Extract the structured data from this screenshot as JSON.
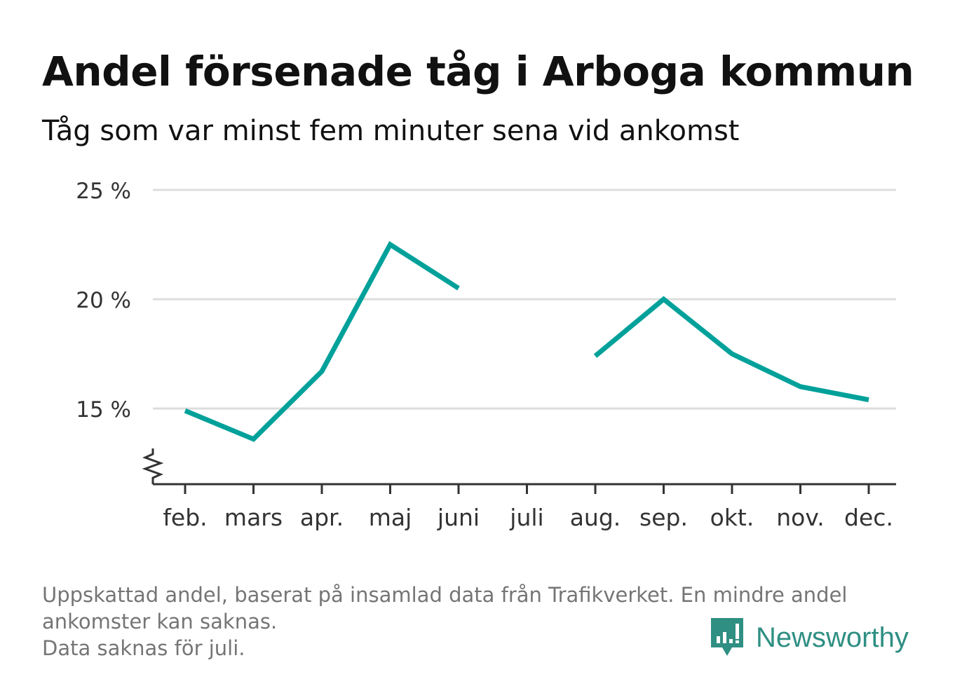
{
  "header": {
    "title": "Andel försenade tåg i Arboga kommun",
    "subtitle": "Tåg som var minst fem minuter sena vid ankomst"
  },
  "chart_data": {
    "type": "line",
    "categories": [
      "feb.",
      "mars",
      "apr.",
      "maj",
      "juni",
      "juli",
      "aug.",
      "sep.",
      "okt.",
      "nov.",
      "dec."
    ],
    "series": [
      {
        "values": [
          14.9,
          13.6,
          16.7,
          22.5,
          20.5,
          null,
          17.4,
          20.0,
          17.5,
          16.0,
          15.4
        ]
      }
    ],
    "y_ticks": [
      15,
      20,
      25
    ],
    "y_tick_labels": [
      "15 %",
      "20 %",
      "25 %"
    ],
    "ylim": [
      11.5,
      25
    ],
    "axis_break": true,
    "grid": true,
    "line_color": "#00a19a",
    "grid_color": "#dddddd",
    "axis_color": "#333333"
  },
  "footnote": {
    "lines": [
      "Uppskattad andel, baserat på insamlad data från Trafikverket. En mindre andel ankomster kan saknas.",
      "Data saknas för juli."
    ]
  },
  "brand": {
    "name": "Newsworthy",
    "color": "#2f8f83",
    "icon": "newsworthy-logo-icon"
  }
}
